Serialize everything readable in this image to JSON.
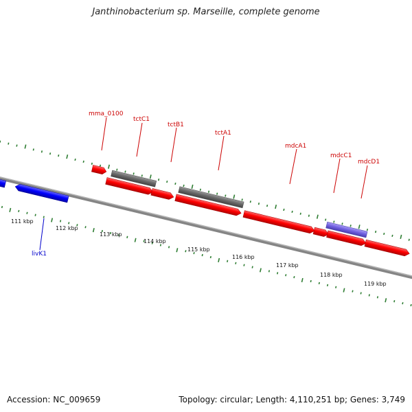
{
  "title": "Janthinobacterium sp. Marseille, complete genome",
  "footer": {
    "accession": "Accession: NC_009659",
    "summary": "Topology: circular; Length: 4,110,251 bp; Genes: 3,749"
  },
  "colors": {
    "backbone": "#808080",
    "tick": "#2e7d32",
    "gene_label": "#cc0000",
    "gene_label_blue": "#0000cc",
    "red_gene": "#ff0000",
    "grey_gene": "#666666",
    "blue_gene": "#0000ff",
    "steelblue_gene": "#4682b4",
    "purple_gene": "#7b68ee"
  },
  "scale_labels": [
    "111 kbp",
    "112 kbp",
    "113 kbp",
    "114 kbp",
    "115 kbp",
    "116 kbp",
    "117 kbp",
    "118 kbp",
    "119 kbp"
  ],
  "gene_labels": [
    {
      "name": "mma_0100",
      "color": "red"
    },
    {
      "name": "tctC1",
      "color": "red"
    },
    {
      "name": "tctB1",
      "color": "red"
    },
    {
      "name": "tctA1",
      "color": "red"
    },
    {
      "name": "mdcA1",
      "color": "red"
    },
    {
      "name": "mdcC1",
      "color": "red"
    },
    {
      "name": "mdcD1",
      "color": "red"
    },
    {
      "name": "livK1",
      "color": "blue"
    }
  ]
}
